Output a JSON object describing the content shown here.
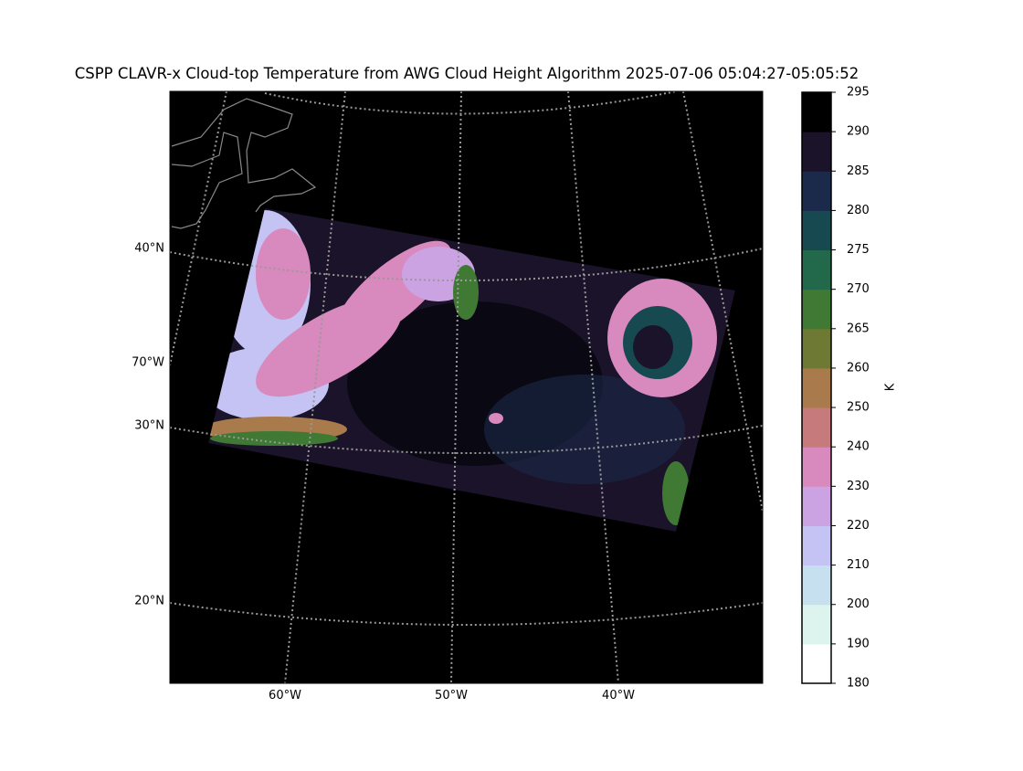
{
  "title": "CSPP CLAVR-x Cloud-top Temperature from AWG Cloud Height Algorithm 2025-07-06 05:04:27-05:05:52",
  "map": {
    "lat_labels": [
      "40°N",
      "70°W",
      "30°N",
      "20°N"
    ],
    "lon_labels": [
      "60°W",
      "50°W",
      "40°W"
    ]
  },
  "colorbar": {
    "label": "K",
    "ticks": [
      180,
      190,
      200,
      210,
      220,
      230,
      240,
      250,
      260,
      265,
      270,
      275,
      280,
      285,
      290,
      295
    ],
    "colors": [
      "#ffffff",
      "#ddf3ee",
      "#c6e0f0",
      "#c4c3f3",
      "#cba3e3",
      "#d889bd",
      "#c77a7c",
      "#a87a4c",
      "#6e7a34",
      "#3f7934",
      "#22684a",
      "#174951",
      "#1b2a4a",
      "#1b1329",
      "#000000"
    ]
  }
}
